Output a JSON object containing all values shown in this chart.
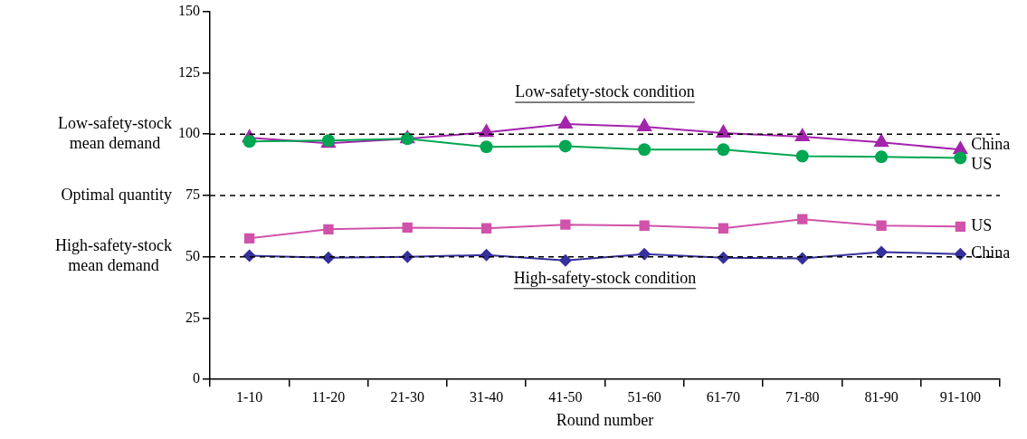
{
  "chart_data": {
    "type": "line",
    "xlabel": "Round number",
    "categories": [
      "1-10",
      "11-20",
      "21-30",
      "31-40",
      "41-50",
      "51-60",
      "61-70",
      "71-80",
      "81-90",
      "91-100"
    ],
    "series": [
      {
        "name": "China",
        "color": "#a324ac",
        "marker": "triangle",
        "values": [
          98.5,
          96.3,
          98.1,
          100.7,
          104.1,
          103.0,
          100.4,
          98.9,
          96.6,
          93.7
        ]
      },
      {
        "name": "US",
        "color": "#00a651",
        "marker": "circle",
        "values": [
          97.0,
          97.4,
          98.1,
          94.8,
          95.1,
          93.7,
          93.7,
          91.0,
          90.7,
          90.3
        ]
      },
      {
        "name": "US",
        "color": "#d152aa",
        "marker": "square",
        "values": [
          57.5,
          61.2,
          61.9,
          61.6,
          63.1,
          62.7,
          61.6,
          65.3,
          62.7,
          62.3
        ]
      },
      {
        "name": "China",
        "color": "#35309b",
        "marker": "diamond",
        "values": [
          50.4,
          49.6,
          50.0,
          50.7,
          48.5,
          51.1,
          49.6,
          49.3,
          51.9,
          51.1
        ]
      }
    ],
    "ylim": [
      0,
      150
    ],
    "yticks": [
      0,
      25,
      50,
      75,
      100,
      125,
      150
    ],
    "ref_lines": [
      {
        "axis": "y",
        "value": 100,
        "label": "Low-safety-stock mean demand",
        "line_style": "dashed",
        "color": "#000000"
      },
      {
        "axis": "y",
        "value": 75,
        "label": "Optimal quantity",
        "line_style": "dashed",
        "color": "#000000"
      },
      {
        "axis": "y",
        "value": 50,
        "label": "High-safety-stock mean demand",
        "line_style": "dashed",
        "color": "#000000"
      }
    ],
    "annotations": [
      "Low-safety-stock condition",
      "High-safety-stock condition"
    ],
    "grid": false,
    "legend": false,
    "line_style": "solid"
  }
}
